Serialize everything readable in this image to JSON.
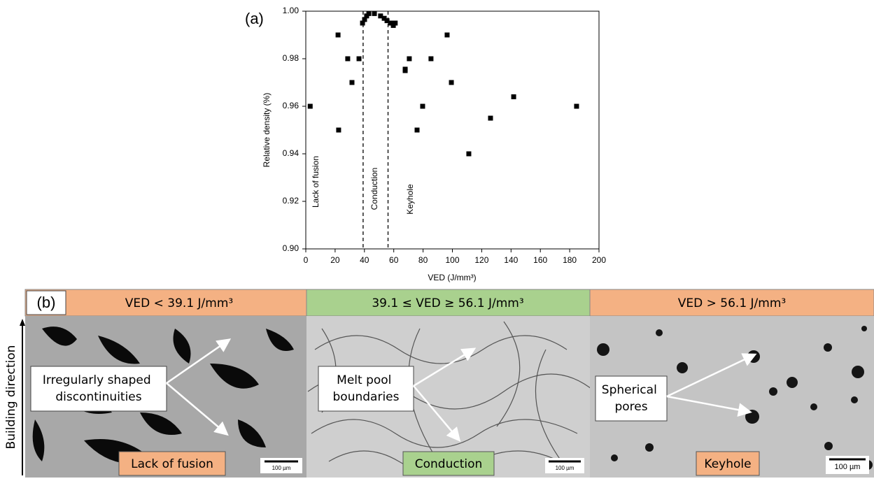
{
  "chart_data": {
    "type": "scatter",
    "panel_label": "(a)",
    "x_label": "VED (J/mm³)",
    "y_label": "Relative density (%)",
    "regions": [
      "Lack of fusion",
      "Conduction",
      "Keyhole"
    ],
    "boundaries": [
      39.1,
      56.1
    ],
    "color": "#000000",
    "x": [
      3,
      22,
      22.4,
      28.6,
      31.5,
      36.3,
      38.7,
      40.1,
      41.5,
      43,
      46.8,
      51,
      53.5,
      55.4,
      57.8,
      59.7,
      61,
      67.8,
      67.8,
      70.6,
      75.9,
      79.7,
      85.4,
      96.4,
      99.3,
      111.2,
      126,
      141.8,
      184.7
    ],
    "values": [
      0.96,
      0.99,
      0.95,
      0.98,
      0.97,
      0.98,
      0.995,
      0.9965,
      0.998,
      0.999,
      0.999,
      0.998,
      0.997,
      0.996,
      0.995,
      0.994,
      0.995,
      0.9756,
      0.975,
      0.98,
      0.95,
      0.96,
      0.98,
      0.99,
      0.97,
      0.94,
      0.955,
      0.964,
      0.96
    ],
    "xlim": [
      0,
      200
    ],
    "xticks": [
      0,
      20,
      40,
      60,
      80,
      100,
      120,
      140,
      160,
      180,
      200
    ],
    "ylim": [
      0.9,
      1.0
    ],
    "yticks": [
      {
        "value": 0.9,
        "label": "0.90"
      },
      0.92,
      0.94,
      0.96,
      0.98,
      {
        "value": 1.0,
        "label": "1.00"
      }
    ]
  },
  "panel_b": {
    "label": "(b)",
    "axis_label": "Building direction",
    "columns": [
      {
        "header": "VED < 39.1 J/mm³",
        "callout": [
          "Irregularly shaped",
          "discontinuities"
        ],
        "footer": "Lack of fusion",
        "scale": "100 µm"
      },
      {
        "header": "39.1 ≤ VED ≥ 56.1 J/mm³",
        "callout": [
          "Melt pool",
          "boundaries"
        ],
        "footer": "Conduction",
        "scale": "100 µm"
      },
      {
        "header": "VED > 56.1 J/mm³",
        "callout": [
          "Spherical",
          "pores"
        ],
        "footer": "Keyhole",
        "scale": "100 µm"
      }
    ]
  }
}
